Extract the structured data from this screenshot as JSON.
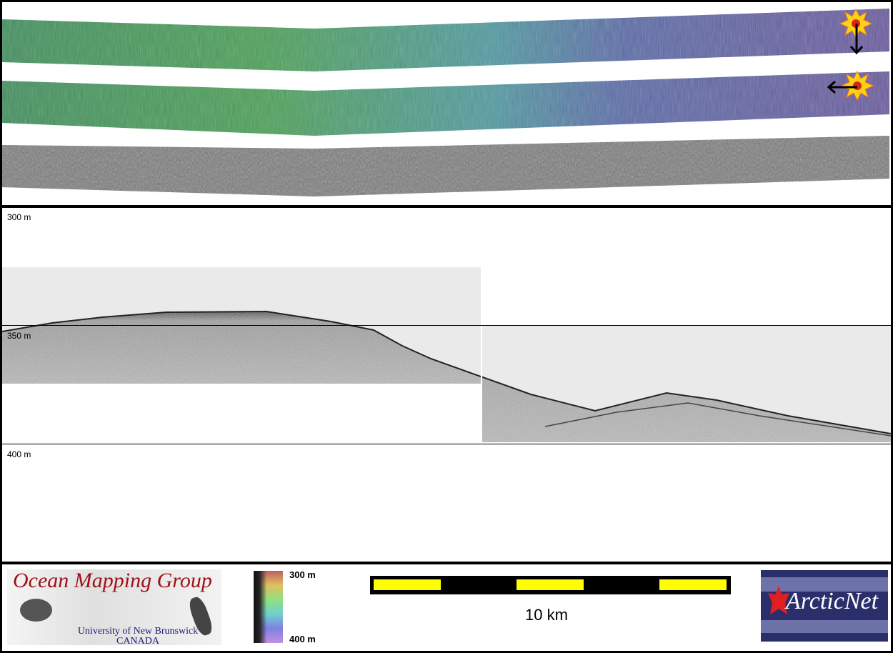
{
  "depth_axis": {
    "labels": [
      "300 m",
      "350 m",
      "400 m"
    ]
  },
  "colorbar": {
    "top_label": "300 m",
    "bottom_label": "400 m"
  },
  "scale_bar": {
    "label": "10 km",
    "colors": [
      "#ffff00",
      "#000000"
    ]
  },
  "logos": {
    "omg_title": "Ocean Mapping Group",
    "omg_university": "University of New Brunswick",
    "omg_country": "CANADA",
    "arcticnet": "ArcticNet"
  },
  "sun_icons": [
    "sun-illumination-north",
    "sun-illumination-east"
  ]
}
